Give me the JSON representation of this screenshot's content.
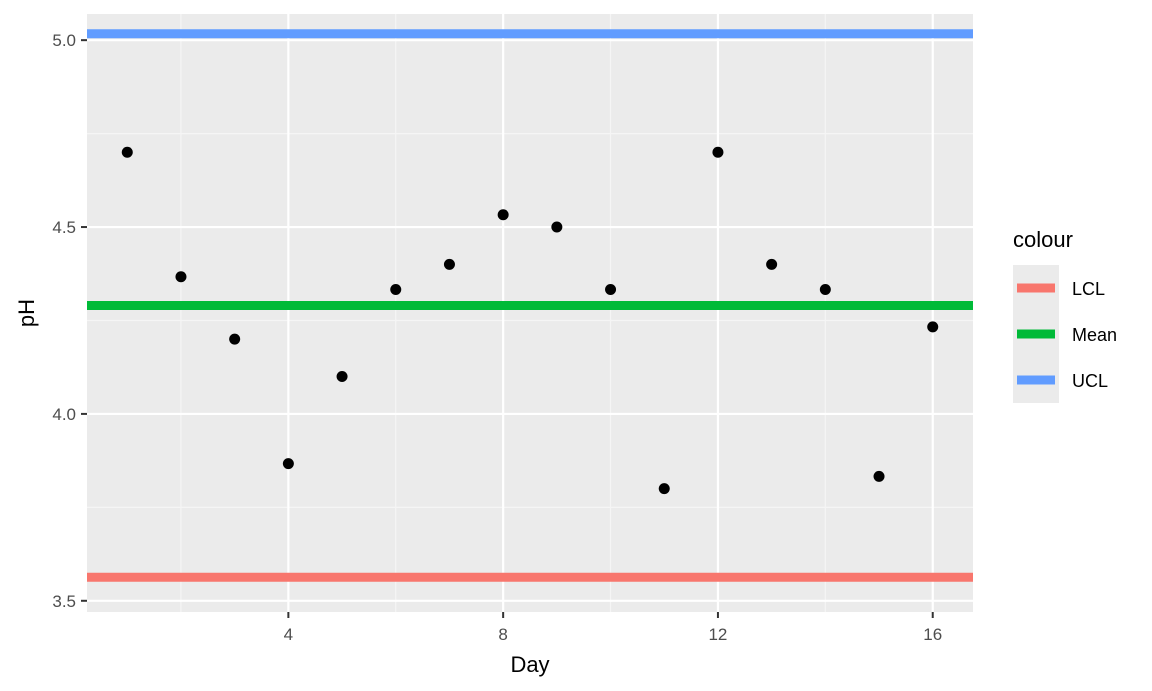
{
  "chart_data": {
    "type": "scatter",
    "title": "",
    "xlabel": "Day",
    "ylabel": "pH",
    "xlim": [
      0.25,
      16.75
    ],
    "ylim": [
      3.47,
      5.07
    ],
    "x_major_ticks": [
      4,
      8,
      12,
      16
    ],
    "x_minor_ticks": [
      2,
      6,
      10,
      14
    ],
    "y_major_ticks": [
      3.5,
      4.0,
      4.5,
      5.0
    ],
    "y_tick_labels": [
      "3.5",
      "4.0",
      "4.5",
      "5.0"
    ],
    "y_minor_ticks": [
      3.75,
      4.25,
      4.75
    ],
    "grid": true,
    "points": {
      "x": [
        1,
        2,
        3,
        4,
        5,
        6,
        7,
        8,
        9,
        10,
        11,
        12,
        13,
        14,
        15,
        16
      ],
      "y": [
        4.7,
        4.367,
        4.2,
        3.867,
        4.1,
        4.333,
        4.4,
        4.533,
        4.5,
        4.333,
        3.8,
        4.7,
        4.4,
        4.333,
        3.833,
        4.233
      ],
      "color": "#000000"
    },
    "hlines": [
      {
        "name": "LCL",
        "value": 3.563,
        "color": "#F8766D"
      },
      {
        "name": "Mean",
        "value": 4.29,
        "color": "#00BA38"
      },
      {
        "name": "UCL",
        "value": 5.017,
        "color": "#619CFF"
      }
    ],
    "legend": {
      "title": "colour",
      "position": "right",
      "entries": [
        "LCL",
        "Mean",
        "UCL"
      ]
    }
  }
}
